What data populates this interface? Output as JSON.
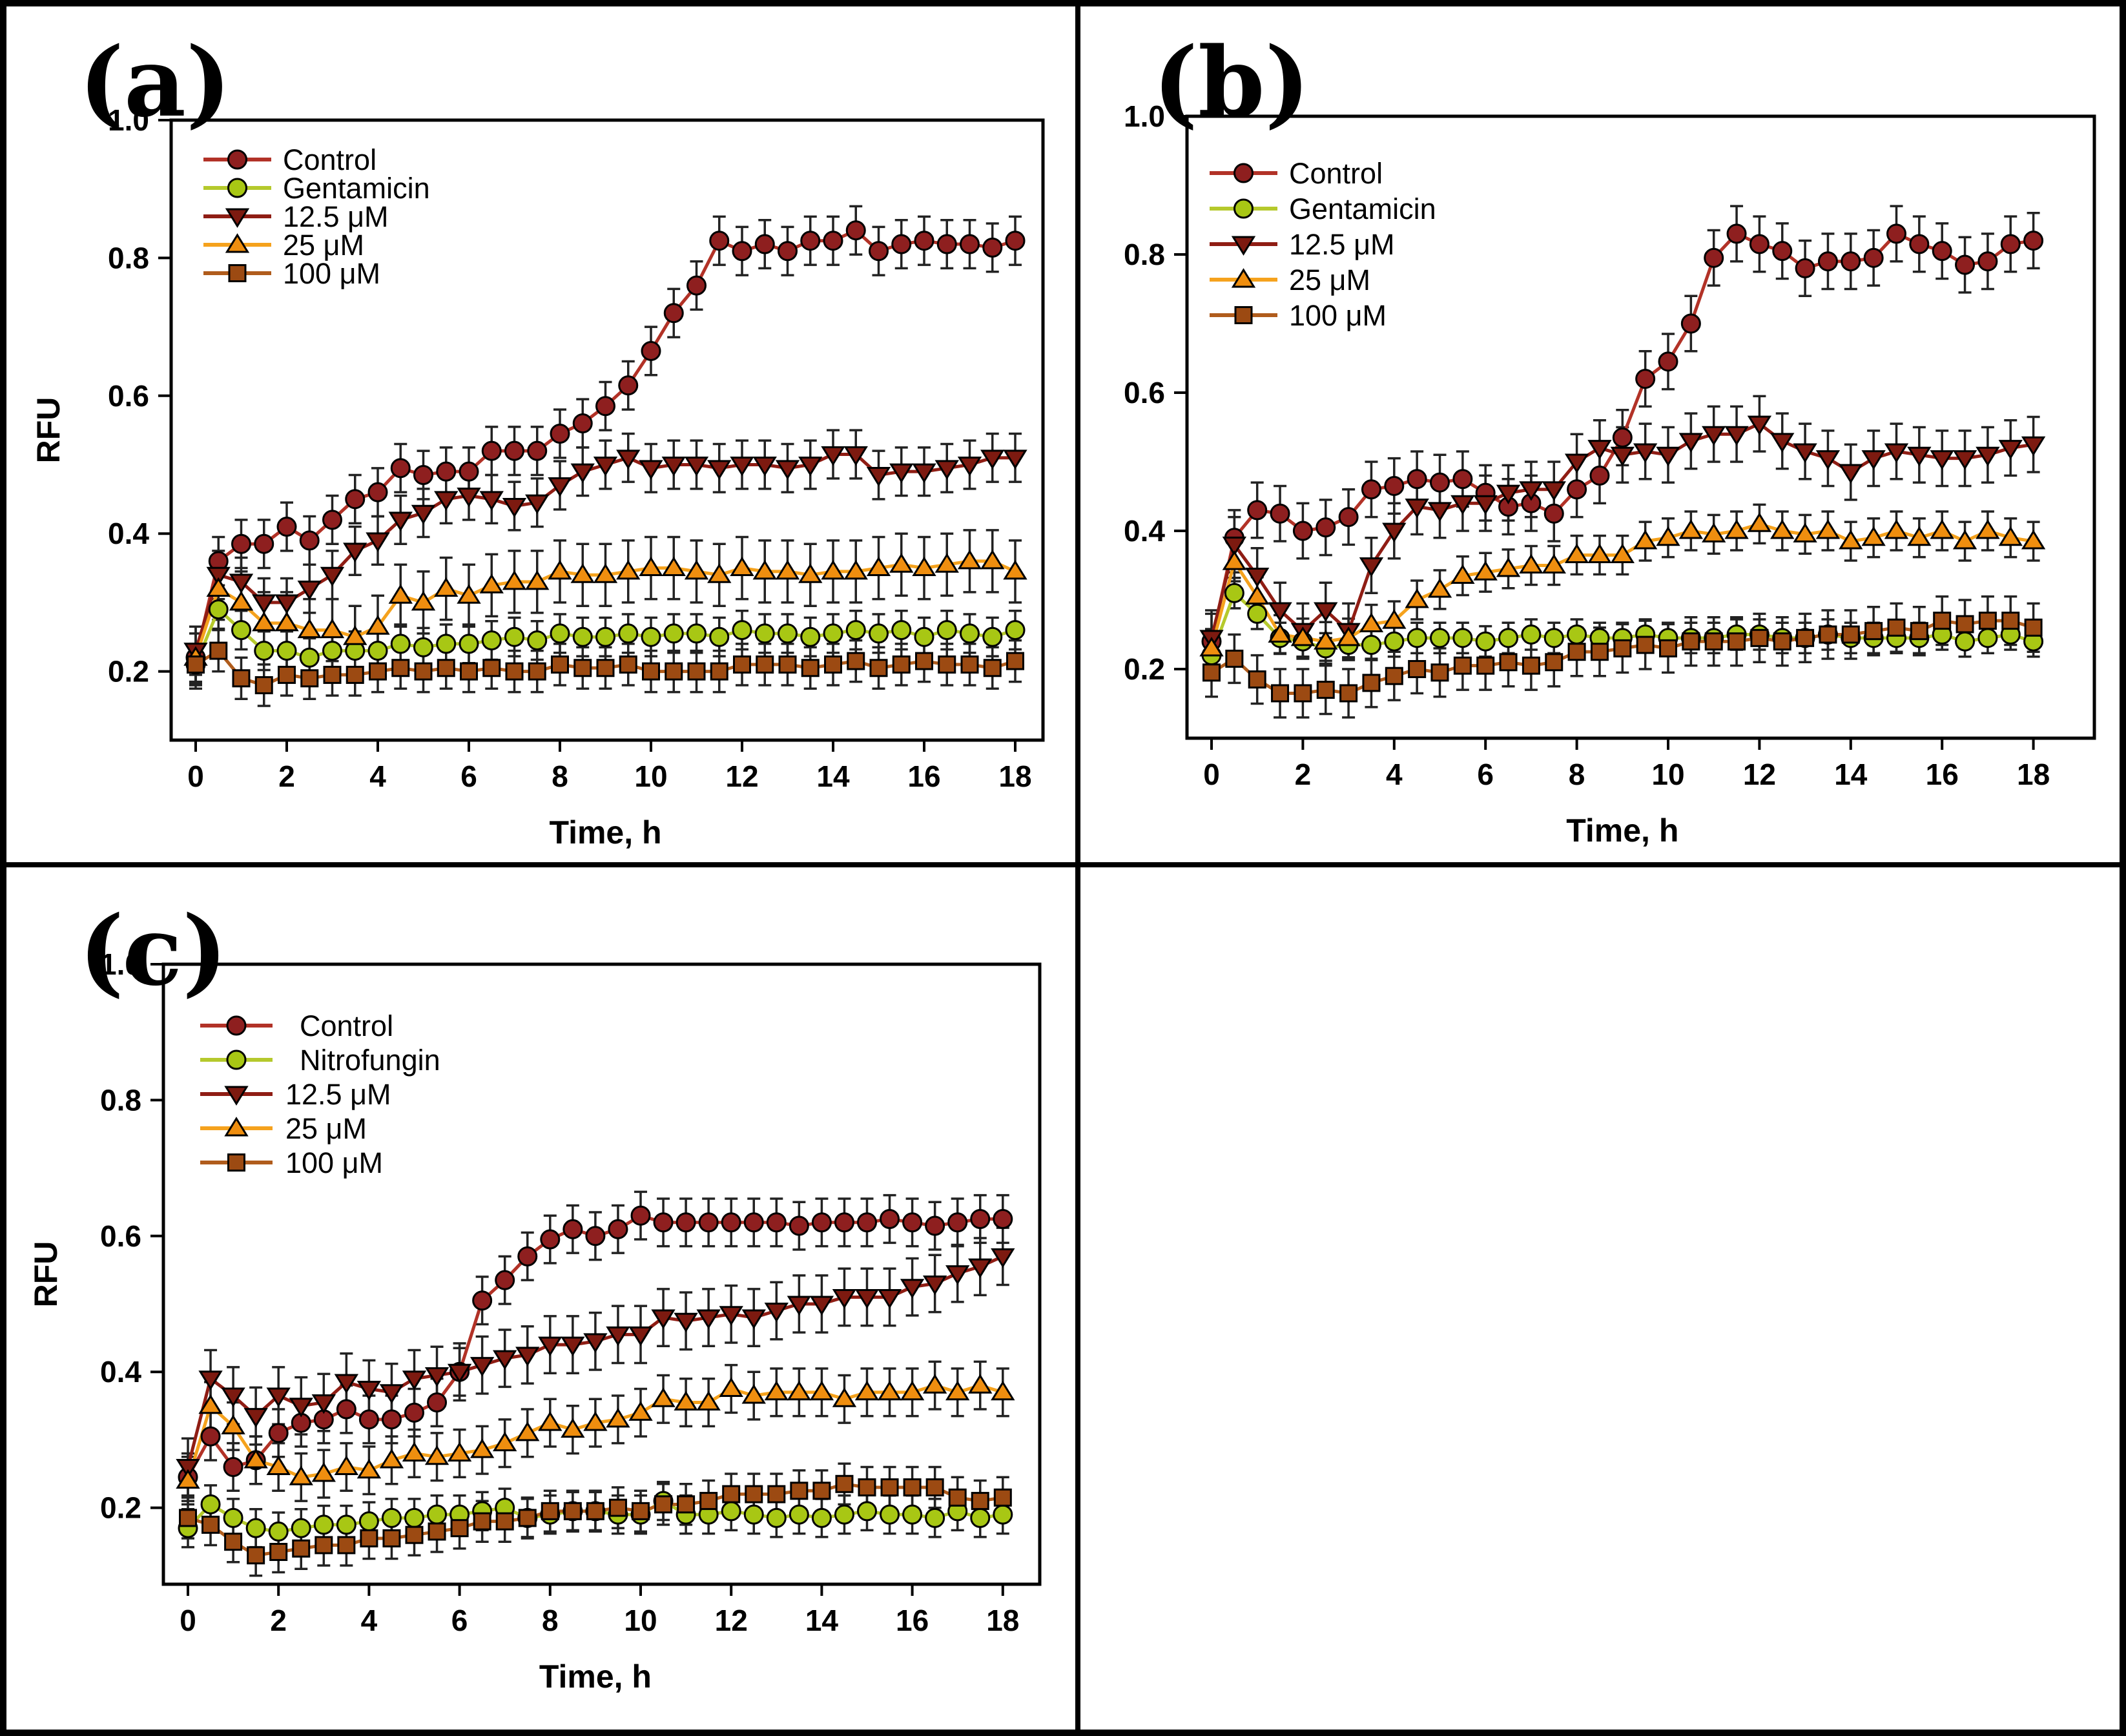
{
  "figure": {
    "type": "multi-panel line chart figure",
    "background": "#ffffff",
    "frame_color": "#000000"
  },
  "colors": {
    "axis": "#000000",
    "error_bar": "#222222",
    "marker_edge": "#000000"
  },
  "chart_data": [
    {
      "type": "line",
      "panel_label": "(a)",
      "xlabel": "Time, h",
      "ylabel": "RFU",
      "xlim": [
        -1,
        19.3
      ],
      "ylim": [
        0.1,
        1.0
      ],
      "xticks": [
        0,
        2,
        4,
        6,
        8,
        10,
        12,
        14,
        16,
        18
      ],
      "yticks": [
        0.2,
        0.4,
        0.6,
        0.8,
        1.0
      ],
      "grid": false,
      "legend_position": "upper-left",
      "x": [
        0,
        0.5,
        1,
        1.5,
        2,
        2.5,
        3,
        3.5,
        4,
        4.5,
        5,
        5.5,
        6,
        6.5,
        7,
        7.5,
        8,
        8.5,
        9,
        9.5,
        10,
        10.5,
        11,
        11.5,
        12,
        12.5,
        13,
        13.5,
        14,
        14.5,
        15,
        15.5,
        16,
        16.5,
        17,
        17.5,
        18
      ],
      "series": [
        {
          "name": "Control",
          "marker": "circle",
          "line_color": "#b23227",
          "marker_color": "#8e1f1f",
          "err": 0.035,
          "values": [
            0.22,
            0.36,
            0.385,
            0.385,
            0.41,
            0.39,
            0.42,
            0.45,
            0.46,
            0.495,
            0.485,
            0.49,
            0.49,
            0.52,
            0.52,
            0.52,
            0.545,
            0.56,
            0.585,
            0.615,
            0.665,
            0.72,
            0.76,
            0.825,
            0.81,
            0.82,
            0.81,
            0.825,
            0.825,
            0.84,
            0.81,
            0.82,
            0.825,
            0.82,
            0.82,
            0.815,
            0.825
          ]
        },
        {
          "name": "Gentamicin",
          "marker": "circle",
          "line_color": "#b5c92c",
          "marker_color": "#a8c714",
          "err": 0.028,
          "values": [
            0.21,
            0.29,
            0.26,
            0.23,
            0.23,
            0.22,
            0.23,
            0.23,
            0.23,
            0.24,
            0.235,
            0.24,
            0.24,
            0.245,
            0.25,
            0.245,
            0.255,
            0.25,
            0.25,
            0.255,
            0.25,
            0.255,
            0.255,
            0.25,
            0.26,
            0.255,
            0.255,
            0.25,
            0.255,
            0.26,
            0.255,
            0.26,
            0.25,
            0.26,
            0.255,
            0.25,
            0.26
          ]
        },
        {
          "name": "12.5 μM",
          "marker": "triangle-down",
          "line_color": "#8f1d14",
          "marker_color": "#7d1a10",
          "err": 0.035,
          "values": [
            0.23,
            0.34,
            0.33,
            0.3,
            0.3,
            0.32,
            0.34,
            0.375,
            0.39,
            0.42,
            0.43,
            0.45,
            0.455,
            0.45,
            0.44,
            0.445,
            0.47,
            0.49,
            0.5,
            0.51,
            0.495,
            0.5,
            0.5,
            0.495,
            0.5,
            0.5,
            0.495,
            0.5,
            0.515,
            0.515,
            0.485,
            0.49,
            0.49,
            0.495,
            0.5,
            0.51,
            0.51
          ]
        },
        {
          "name": "25 μM",
          "marker": "triangle-up",
          "line_color": "#f5a21d",
          "marker_color": "#ef8e0f",
          "err": 0.045,
          "values": [
            0.22,
            0.32,
            0.3,
            0.27,
            0.27,
            0.26,
            0.26,
            0.25,
            0.265,
            0.31,
            0.3,
            0.32,
            0.31,
            0.325,
            0.33,
            0.33,
            0.345,
            0.34,
            0.34,
            0.345,
            0.35,
            0.35,
            0.345,
            0.34,
            0.35,
            0.345,
            0.345,
            0.34,
            0.345,
            0.345,
            0.35,
            0.355,
            0.35,
            0.355,
            0.36,
            0.36,
            0.345
          ]
        },
        {
          "name": "100 μM",
          "marker": "square",
          "line_color": "#b05c1c",
          "marker_color": "#9c4a12",
          "err": 0.03,
          "values": [
            0.21,
            0.23,
            0.19,
            0.18,
            0.195,
            0.19,
            0.195,
            0.195,
            0.2,
            0.205,
            0.2,
            0.205,
            0.2,
            0.205,
            0.2,
            0.2,
            0.21,
            0.205,
            0.205,
            0.21,
            0.2,
            0.2,
            0.2,
            0.2,
            0.21,
            0.21,
            0.21,
            0.205,
            0.21,
            0.215,
            0.205,
            0.21,
            0.215,
            0.21,
            0.21,
            0.205,
            0.215
          ]
        }
      ]
    },
    {
      "type": "line",
      "panel_label": "(b)",
      "xlabel": "Time, h",
      "ylabel": "",
      "xlim": [
        -1,
        19.3
      ],
      "ylim": [
        0.1,
        1.0
      ],
      "xticks": [
        0,
        2,
        4,
        6,
        8,
        10,
        12,
        14,
        16,
        18
      ],
      "yticks": [
        0.2,
        0.4,
        0.6,
        0.8,
        1.0
      ],
      "grid": false,
      "legend_position": "upper-left",
      "x": [
        0,
        0.5,
        1,
        1.5,
        2,
        2.5,
        3,
        3.5,
        4,
        4.5,
        5,
        5.5,
        6,
        6.5,
        7,
        7.5,
        8,
        8.5,
        9,
        9.5,
        10,
        10.5,
        11,
        11.5,
        12,
        12.5,
        13,
        13.5,
        14,
        14.5,
        15,
        15.5,
        16,
        16.5,
        17,
        17.5,
        18
      ],
      "series": [
        {
          "name": "Control",
          "marker": "circle",
          "line_color": "#b23227",
          "marker_color": "#8e1f1f",
          "err": 0.04,
          "values": [
            0.24,
            0.39,
            0.43,
            0.425,
            0.4,
            0.405,
            0.42,
            0.46,
            0.465,
            0.475,
            0.47,
            0.475,
            0.455,
            0.435,
            0.44,
            0.425,
            0.46,
            0.48,
            0.535,
            0.62,
            0.645,
            0.7,
            0.795,
            0.83,
            0.815,
            0.805,
            0.78,
            0.79,
            0.79,
            0.795,
            0.83,
            0.815,
            0.805,
            0.785,
            0.79,
            0.815,
            0.82
          ]
        },
        {
          "name": "Gentamicin",
          "marker": "circle",
          "line_color": "#b5c92c",
          "marker_color": "#a8c714",
          "err": 0.022,
          "values": [
            0.22,
            0.31,
            0.28,
            0.245,
            0.24,
            0.23,
            0.235,
            0.235,
            0.24,
            0.245,
            0.245,
            0.245,
            0.24,
            0.245,
            0.25,
            0.245,
            0.25,
            0.245,
            0.245,
            0.25,
            0.245,
            0.245,
            0.245,
            0.25,
            0.25,
            0.245,
            0.245,
            0.25,
            0.245,
            0.245,
            0.245,
            0.245,
            0.25,
            0.24,
            0.245,
            0.25,
            0.24
          ]
        },
        {
          "name": "12.5 μM",
          "marker": "triangle-down",
          "line_color": "#8f1d14",
          "marker_color": "#7d1a10",
          "err": 0.04,
          "values": [
            0.245,
            0.38,
            0.335,
            0.285,
            0.255,
            0.285,
            0.255,
            0.35,
            0.4,
            0.435,
            0.43,
            0.44,
            0.44,
            0.455,
            0.46,
            0.46,
            0.5,
            0.52,
            0.51,
            0.515,
            0.51,
            0.53,
            0.54,
            0.54,
            0.555,
            0.53,
            0.515,
            0.505,
            0.485,
            0.505,
            0.515,
            0.51,
            0.505,
            0.505,
            0.51,
            0.52,
            0.525
          ]
        },
        {
          "name": "25 μM",
          "marker": "triangle-up",
          "line_color": "#f5a21d",
          "marker_color": "#ef8e0f",
          "err": 0.028,
          "values": [
            0.23,
            0.355,
            0.305,
            0.25,
            0.245,
            0.24,
            0.245,
            0.265,
            0.27,
            0.3,
            0.315,
            0.335,
            0.34,
            0.345,
            0.35,
            0.35,
            0.365,
            0.365,
            0.365,
            0.385,
            0.39,
            0.4,
            0.395,
            0.4,
            0.41,
            0.4,
            0.395,
            0.4,
            0.385,
            0.39,
            0.4,
            0.39,
            0.4,
            0.385,
            0.4,
            0.39,
            0.385
          ]
        },
        {
          "name": "100 μM",
          "marker": "square",
          "line_color": "#b05c1c",
          "marker_color": "#9c4a12",
          "err": 0.035,
          "values": [
            0.195,
            0.215,
            0.185,
            0.165,
            0.165,
            0.17,
            0.165,
            0.18,
            0.19,
            0.2,
            0.195,
            0.205,
            0.205,
            0.21,
            0.205,
            0.21,
            0.225,
            0.225,
            0.23,
            0.235,
            0.23,
            0.24,
            0.24,
            0.24,
            0.245,
            0.24,
            0.245,
            0.25,
            0.25,
            0.255,
            0.26,
            0.255,
            0.27,
            0.265,
            0.27,
            0.27,
            0.26
          ]
        }
      ]
    },
    {
      "type": "line",
      "panel_label": "(c)",
      "xlabel": "Time, h",
      "ylabel": "RFU",
      "xlim": [
        -1,
        19.3
      ],
      "ylim": [
        0.1,
        1.0
      ],
      "xticks": [
        0,
        2,
        4,
        6,
        8,
        10,
        12,
        14,
        16,
        18
      ],
      "yticks": [
        0.2,
        0.4,
        0.6,
        0.8,
        1.0
      ],
      "grid": false,
      "legend_position": "upper-left",
      "x": [
        0,
        0.5,
        1,
        1.5,
        2,
        2.5,
        3,
        3.5,
        4,
        4.5,
        5,
        5.5,
        6,
        6.5,
        7,
        7.5,
        8,
        8.5,
        9,
        9.5,
        10,
        10.5,
        11,
        11.5,
        12,
        12.5,
        13,
        13.5,
        14,
        14.5,
        15,
        15.5,
        16,
        16.5,
        17,
        17.5,
        18
      ],
      "series": [
        {
          "name": "Control",
          "marker": "circle",
          "line_color": "#b23227",
          "marker_color": "#8e1f1f",
          "err": 0.035,
          "values": [
            0.245,
            0.305,
            0.26,
            0.27,
            0.31,
            0.325,
            0.33,
            0.345,
            0.33,
            0.33,
            0.34,
            0.355,
            0.4,
            0.505,
            0.535,
            0.57,
            0.595,
            0.61,
            0.6,
            0.61,
            0.63,
            0.62,
            0.62,
            0.62,
            0.62,
            0.62,
            0.62,
            0.615,
            0.62,
            0.62,
            0.62,
            0.625,
            0.62,
            0.615,
            0.62,
            0.625,
            0.625
          ]
        },
        {
          "name": "Nitrofungin",
          "marker": "circle",
          "line_color": "#b5c92c",
          "marker_color": "#a8c714",
          "err": 0.028,
          "values": [
            0.17,
            0.205,
            0.185,
            0.17,
            0.165,
            0.17,
            0.175,
            0.175,
            0.18,
            0.185,
            0.185,
            0.19,
            0.19,
            0.195,
            0.2,
            0.185,
            0.19,
            0.195,
            0.195,
            0.19,
            0.19,
            0.21,
            0.19,
            0.19,
            0.195,
            0.19,
            0.185,
            0.19,
            0.185,
            0.19,
            0.195,
            0.19,
            0.19,
            0.185,
            0.195,
            0.185,
            0.19
          ]
        },
        {
          "name": "12.5 μM",
          "marker": "triangle-down",
          "line_color": "#8f1d14",
          "marker_color": "#7d1a10",
          "err": 0.042,
          "values": [
            0.26,
            0.39,
            0.365,
            0.335,
            0.365,
            0.35,
            0.355,
            0.385,
            0.375,
            0.37,
            0.39,
            0.395,
            0.4,
            0.41,
            0.42,
            0.425,
            0.44,
            0.44,
            0.445,
            0.455,
            0.455,
            0.48,
            0.475,
            0.48,
            0.485,
            0.48,
            0.49,
            0.5,
            0.5,
            0.51,
            0.51,
            0.51,
            0.525,
            0.53,
            0.545,
            0.555,
            0.57
          ]
        },
        {
          "name": "25 μM",
          "marker": "triangle-up",
          "line_color": "#f5a21d",
          "marker_color": "#ef8e0f",
          "err": 0.035,
          "values": [
            0.24,
            0.35,
            0.32,
            0.27,
            0.26,
            0.245,
            0.25,
            0.26,
            0.255,
            0.27,
            0.28,
            0.275,
            0.28,
            0.285,
            0.295,
            0.31,
            0.325,
            0.315,
            0.325,
            0.33,
            0.34,
            0.36,
            0.355,
            0.355,
            0.375,
            0.365,
            0.37,
            0.37,
            0.37,
            0.36,
            0.37,
            0.37,
            0.37,
            0.38,
            0.37,
            0.38,
            0.37
          ]
        },
        {
          "name": "100 μM",
          "marker": "square",
          "line_color": "#b05c1c",
          "marker_color": "#9c4a12",
          "err": 0.03,
          "values": [
            0.185,
            0.175,
            0.15,
            0.13,
            0.135,
            0.14,
            0.145,
            0.145,
            0.155,
            0.155,
            0.16,
            0.165,
            0.17,
            0.18,
            0.18,
            0.185,
            0.195,
            0.195,
            0.195,
            0.2,
            0.195,
            0.205,
            0.205,
            0.21,
            0.22,
            0.22,
            0.22,
            0.225,
            0.225,
            0.235,
            0.23,
            0.23,
            0.23,
            0.23,
            0.215,
            0.21,
            0.215
          ]
        }
      ]
    }
  ]
}
